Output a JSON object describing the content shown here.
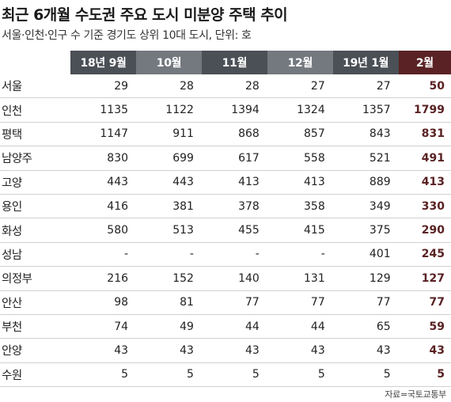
{
  "title": "최근 6개월 수도권 주요 도시 미분양 주택 추이",
  "subtitle": "서울·인천·인구 수 기준 경기도 상위 10대 도시, 단위: 호",
  "source": "자료=국토교통부",
  "colors": {
    "header_dark": "#4b4f56",
    "header_light": "#74787f",
    "header_last": "#5a2224",
    "last_column_text": "#5a2224"
  },
  "chart_data": {
    "type": "table",
    "title": "최근 6개월 수도권 주요 도시 미분양 주택 추이",
    "subtitle": "서울·인천·인구 수 기준 경기도 상위 10대 도시, 단위: 호",
    "columns": [
      "18년 9월",
      "10월",
      "11월",
      "12월",
      "19년 1월",
      "2월"
    ],
    "rows": [
      {
        "city": "서울",
        "values": [
          "29",
          "28",
          "28",
          "27",
          "27",
          "50"
        ]
      },
      {
        "city": "인천",
        "values": [
          "1135",
          "1122",
          "1394",
          "1324",
          "1357",
          "1799"
        ]
      },
      {
        "city": "평택",
        "values": [
          "1147",
          "911",
          "868",
          "857",
          "843",
          "831"
        ]
      },
      {
        "city": "남양주",
        "values": [
          "830",
          "699",
          "617",
          "558",
          "521",
          "491"
        ]
      },
      {
        "city": "고양",
        "values": [
          "443",
          "443",
          "413",
          "413",
          "889",
          "413"
        ]
      },
      {
        "city": "용인",
        "values": [
          "416",
          "381",
          "378",
          "358",
          "349",
          "330"
        ]
      },
      {
        "city": "화성",
        "values": [
          "580",
          "513",
          "455",
          "415",
          "375",
          "290"
        ]
      },
      {
        "city": "성남",
        "values": [
          "-",
          "-",
          "-",
          "-",
          "401",
          "245"
        ]
      },
      {
        "city": "의정부",
        "values": [
          "216",
          "152",
          "140",
          "131",
          "129",
          "127"
        ]
      },
      {
        "city": "안산",
        "values": [
          "98",
          "81",
          "77",
          "77",
          "77",
          "77"
        ]
      },
      {
        "city": "부천",
        "values": [
          "74",
          "49",
          "44",
          "44",
          "65",
          "59"
        ]
      },
      {
        "city": "안양",
        "values": [
          "43",
          "43",
          "43",
          "43",
          "43",
          "43"
        ]
      },
      {
        "city": "수원",
        "values": [
          "5",
          "5",
          "5",
          "5",
          "5",
          "5"
        ]
      }
    ]
  }
}
